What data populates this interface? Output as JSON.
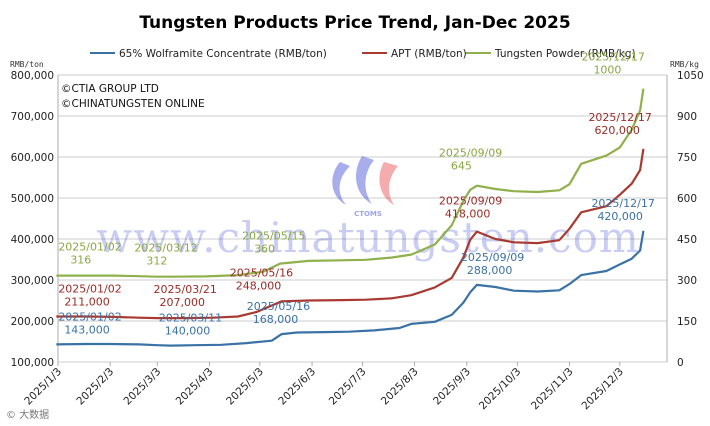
{
  "chart_data": {
    "type": "line",
    "title": "Tungsten Products Price Trend, Jan-Dec 2025",
    "y_left_unit": "RMB/ton",
    "y_right_unit": "RMB/kg",
    "y_left_range": [
      100000,
      800000
    ],
    "y_left_ticks": [
      "100,000",
      "200,000",
      "300,000",
      "400,000",
      "500,000",
      "600,000",
      "700,000",
      "800,000"
    ],
    "y_right_range": [
      0,
      1050
    ],
    "y_right_ticks": [
      "0",
      "150",
      "300",
      "450",
      "600",
      "750",
      "900",
      "1050"
    ],
    "x_range": [
      "2025-01-03",
      "2025-12-31"
    ],
    "x_ticks": [
      "2025/1/3",
      "2025/2/3",
      "2025/3/3",
      "2025/4/3",
      "2025/5/3",
      "2025/6/3",
      "2025/7/3",
      "2025/8/3",
      "2025/9/3",
      "2025/10/3",
      "2025/11/3",
      "2025/12/3"
    ],
    "legend_position": "top",
    "copyright": [
      "©CTIA GROUP LTD",
      "©CHINATUNGSTEN ONLINE"
    ],
    "watermark": "www.chinatungsten.com",
    "watermark_logo_text": "CTOMS",
    "corner_mark": "© 大数据",
    "series": [
      {
        "name": "65% Wolframite Concentrate (RMB/ton)",
        "axis": "left",
        "color": "#3b72a5",
        "points": [
          [
            "2025-01-02",
            143000
          ],
          [
            "2025-01-20",
            144000
          ],
          [
            "2025-02-03",
            144000
          ],
          [
            "2025-02-20",
            143000
          ],
          [
            "2025-03-03",
            141000
          ],
          [
            "2025-03-11",
            140000
          ],
          [
            "2025-03-25",
            141000
          ],
          [
            "2025-04-10",
            142000
          ],
          [
            "2025-04-25",
            146000
          ],
          [
            "2025-05-10",
            152000
          ],
          [
            "2025-05-16",
            168000
          ],
          [
            "2025-05-25",
            172000
          ],
          [
            "2025-06-10",
            173000
          ],
          [
            "2025-06-25",
            174000
          ],
          [
            "2025-07-10",
            177000
          ],
          [
            "2025-07-25",
            183000
          ],
          [
            "2025-08-01",
            193000
          ],
          [
            "2025-08-15",
            198000
          ],
          [
            "2025-08-25",
            215000
          ],
          [
            "2025-09-01",
            245000
          ],
          [
            "2025-09-05",
            270000
          ],
          [
            "2025-09-09",
            288000
          ],
          [
            "2025-09-20",
            283000
          ],
          [
            "2025-10-01",
            274000
          ],
          [
            "2025-10-15",
            272000
          ],
          [
            "2025-10-28",
            275000
          ],
          [
            "2025-11-03",
            290000
          ],
          [
            "2025-11-10",
            312000
          ],
          [
            "2025-11-25",
            322000
          ],
          [
            "2025-12-03",
            338000
          ],
          [
            "2025-12-10",
            352000
          ],
          [
            "2025-12-15",
            372000
          ],
          [
            "2025-12-17",
            420000
          ]
        ]
      },
      {
        "name": "APT (RMB/ton)",
        "axis": "left",
        "color": "#a83a32",
        "points": [
          [
            "2025-01-02",
            211000
          ],
          [
            "2025-01-20",
            211000
          ],
          [
            "2025-02-05",
            210000
          ],
          [
            "2025-02-20",
            208000
          ],
          [
            "2025-03-03",
            207000
          ],
          [
            "2025-03-21",
            207000
          ],
          [
            "2025-04-05",
            208000
          ],
          [
            "2025-04-20",
            211000
          ],
          [
            "2025-05-01",
            222000
          ],
          [
            "2025-05-16",
            248000
          ],
          [
            "2025-06-01",
            250000
          ],
          [
            "2025-06-20",
            251000
          ],
          [
            "2025-07-05",
            252000
          ],
          [
            "2025-07-20",
            255000
          ],
          [
            "2025-08-01",
            263000
          ],
          [
            "2025-08-15",
            282000
          ],
          [
            "2025-08-25",
            305000
          ],
          [
            "2025-09-01",
            355000
          ],
          [
            "2025-09-05",
            398000
          ],
          [
            "2025-09-09",
            418000
          ],
          [
            "2025-09-20",
            400000
          ],
          [
            "2025-10-01",
            392000
          ],
          [
            "2025-10-15",
            390000
          ],
          [
            "2025-10-28",
            397000
          ],
          [
            "2025-11-03",
            425000
          ],
          [
            "2025-11-10",
            465000
          ],
          [
            "2025-11-25",
            480000
          ],
          [
            "2025-12-03",
            508000
          ],
          [
            "2025-12-10",
            535000
          ],
          [
            "2025-12-15",
            568000
          ],
          [
            "2025-12-17",
            620000
          ]
        ]
      },
      {
        "name": "Tungsten Powder (RMB/kg)",
        "axis": "right",
        "color": "#8fb04a",
        "points": [
          [
            "2025-01-02",
            316
          ],
          [
            "2025-01-20",
            316
          ],
          [
            "2025-02-05",
            316
          ],
          [
            "2025-02-20",
            314
          ],
          [
            "2025-03-03",
            312
          ],
          [
            "2025-03-12",
            312
          ],
          [
            "2025-04-01",
            313
          ],
          [
            "2025-04-20",
            318
          ],
          [
            "2025-05-05",
            330
          ],
          [
            "2025-05-15",
            360
          ],
          [
            "2025-06-01",
            370
          ],
          [
            "2025-06-20",
            372
          ],
          [
            "2025-07-05",
            374
          ],
          [
            "2025-07-20",
            382
          ],
          [
            "2025-08-01",
            393
          ],
          [
            "2025-08-15",
            430
          ],
          [
            "2025-08-25",
            500
          ],
          [
            "2025-09-01",
            590
          ],
          [
            "2025-09-05",
            630
          ],
          [
            "2025-09-09",
            645
          ],
          [
            "2025-09-20",
            633
          ],
          [
            "2025-10-01",
            625
          ],
          [
            "2025-10-15",
            622
          ],
          [
            "2025-10-28",
            628
          ],
          [
            "2025-11-03",
            650
          ],
          [
            "2025-11-10",
            725
          ],
          [
            "2025-11-25",
            755
          ],
          [
            "2025-12-03",
            785
          ],
          [
            "2025-12-10",
            850
          ],
          [
            "2025-12-15",
            920
          ],
          [
            "2025-12-17",
            1000
          ]
        ]
      }
    ],
    "annotations": [
      {
        "series": 0,
        "date": "2025/01/02",
        "value": "143,000",
        "at": [
          "2025-01-02",
          143000
        ]
      },
      {
        "series": 0,
        "date": "2025/03/11",
        "value": "140,000",
        "at": [
          "2025-03-11",
          140000
        ]
      },
      {
        "series": 0,
        "date": "2025/05/16",
        "value": "168,000",
        "at": [
          "2025-05-16",
          168000
        ]
      },
      {
        "series": 0,
        "date": "2025/09/09",
        "value": "288,000",
        "at": [
          "2025-09-09",
          288000
        ]
      },
      {
        "series": 0,
        "date": "2025/12/17",
        "value": "420,000",
        "at": [
          "2025-12-17",
          420000
        ]
      },
      {
        "series": 1,
        "date": "2025/01/02",
        "value": "211,000",
        "at": [
          "2025-01-02",
          211000
        ]
      },
      {
        "series": 1,
        "date": "2025/03/21",
        "value": "207,000",
        "at": [
          "2025-03-21",
          207000
        ]
      },
      {
        "series": 1,
        "date": "2025/05/16",
        "value": "248,000",
        "at": [
          "2025-05-16",
          248000
        ]
      },
      {
        "series": 1,
        "date": "2025/09/09",
        "value": "418,000",
        "at": [
          "2025-09-09",
          418000
        ]
      },
      {
        "series": 1,
        "date": "2025/12/17",
        "value": "620,000",
        "at": [
          "2025-12-17",
          620000
        ]
      },
      {
        "series": 2,
        "date": "2025/01/02",
        "value": "316",
        "at": [
          "2025-01-02",
          316
        ]
      },
      {
        "series": 2,
        "date": "2025/03/12",
        "value": "312",
        "at": [
          "2025-03-12",
          312
        ]
      },
      {
        "series": 2,
        "date": "2025/05/15",
        "value": "360",
        "at": [
          "2025-05-15",
          360
        ]
      },
      {
        "series": 2,
        "date": "2025/09/09",
        "value": "645",
        "at": [
          "2025-09-09",
          645
        ]
      },
      {
        "series": 2,
        "date": "2025/12/17",
        "value": "1000",
        "at": [
          "2025-12-17",
          1000
        ]
      }
    ]
  }
}
